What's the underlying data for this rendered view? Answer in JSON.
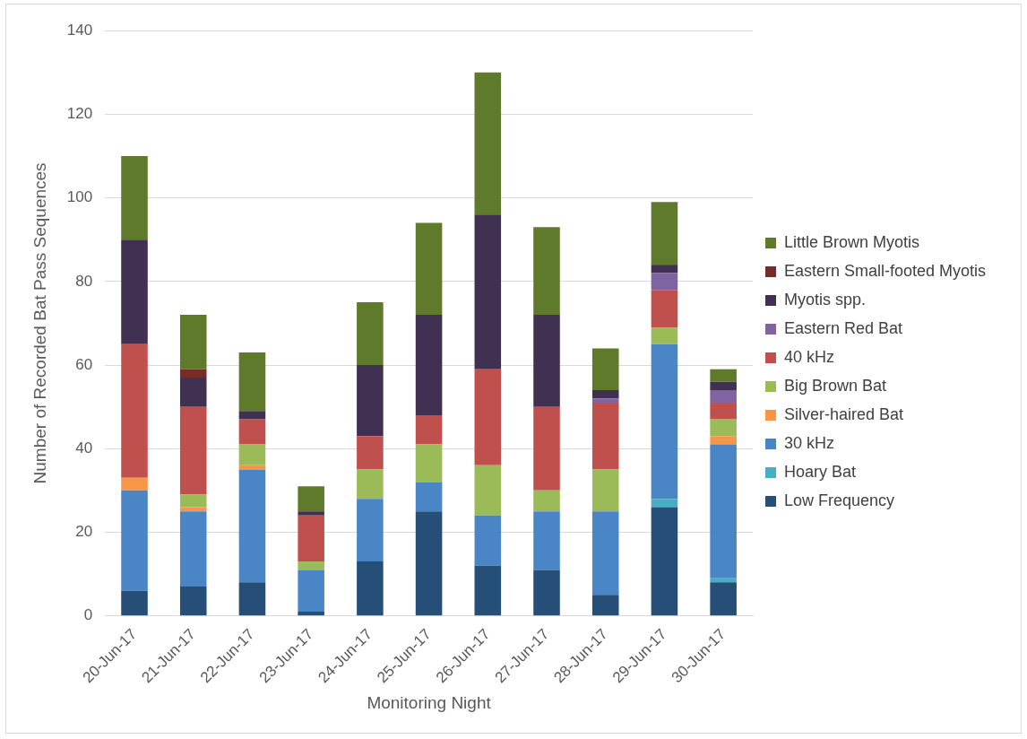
{
  "chart_data": {
    "type": "bar",
    "stacked": true,
    "xlabel": "Monitoring Night",
    "ylabel": "Number of Recorded Bat Pass Sequences",
    "categories": [
      "20-Jun-17",
      "21-Jun-17",
      "22-Jun-17",
      "23-Jun-17",
      "24-Jun-17",
      "25-Jun-17",
      "26-Jun-17",
      "27-Jun-17",
      "28-Jun-17",
      "29-Jun-17",
      "30-Jun-17"
    ],
    "series": [
      {
        "name": "Low Frequency",
        "color": "#264f78",
        "values": [
          6,
          7,
          8,
          1,
          13,
          25,
          12,
          11,
          5,
          26,
          8
        ]
      },
      {
        "name": "Hoary Bat",
        "color": "#4bacc6",
        "values": [
          0,
          0,
          0,
          0,
          0,
          0,
          0,
          0,
          0,
          2,
          1
        ]
      },
      {
        "name": "30 kHz",
        "color": "#4a86c5",
        "values": [
          24,
          18,
          27,
          10,
          15,
          7,
          12,
          14,
          20,
          37,
          32
        ]
      },
      {
        "name": "Silver-haired Bat",
        "color": "#f79646",
        "values": [
          3,
          1,
          1,
          0,
          0,
          0,
          0,
          0,
          0,
          0,
          2
        ]
      },
      {
        "name": "Big Brown Bat",
        "color": "#9bbb59",
        "values": [
          0,
          3,
          5,
          2,
          7,
          9,
          12,
          5,
          10,
          4,
          4
        ]
      },
      {
        "name": "40 kHz",
        "color": "#c0504d",
        "values": [
          32,
          21,
          6,
          11,
          8,
          7,
          23,
          20,
          16,
          9,
          4
        ]
      },
      {
        "name": "Eastern Red Bat",
        "color": "#8064a2",
        "values": [
          0,
          0,
          0,
          0,
          0,
          0,
          0,
          0,
          1,
          4,
          3
        ]
      },
      {
        "name": "Myotis spp.",
        "color": "#403152",
        "values": [
          25,
          7,
          2,
          1,
          17,
          24,
          37,
          22,
          2,
          2,
          2
        ]
      },
      {
        "name": "Eastern Small-footed Myotis",
        "color": "#772c2a",
        "values": [
          0,
          2,
          0,
          0,
          0,
          0,
          0,
          0,
          0,
          0,
          0
        ]
      },
      {
        "name": "Little Brown Myotis",
        "color": "#5e7a2a",
        "values": [
          20,
          13,
          14,
          6,
          15,
          22,
          34,
          21,
          10,
          15,
          3
        ]
      }
    ],
    "ylim": [
      0,
      140
    ],
    "yticks": [
      0,
      20,
      40,
      60,
      80,
      100,
      120,
      140
    ],
    "grid": "y",
    "legend": "right"
  }
}
